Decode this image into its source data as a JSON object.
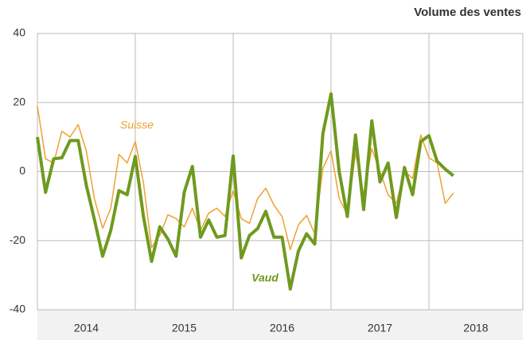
{
  "chart_data": {
    "type": "line",
    "title": "Volume des ventes",
    "categories": [
      null,
      null,
      null,
      null,
      null,
      null,
      null,
      null,
      null,
      null,
      null,
      null,
      null,
      null,
      null,
      null,
      null,
      null,
      null,
      null,
      null,
      null,
      null,
      null,
      null,
      null,
      null,
      null,
      null,
      null,
      null,
      null,
      null,
      null,
      null,
      null,
      null,
      null,
      null,
      null,
      null,
      null,
      null,
      null,
      null,
      null,
      null,
      null,
      null,
      null,
      null,
      null
    ],
    "year_groups": [
      2014,
      2015,
      2016,
      2017,
      2018
    ],
    "series": [
      {
        "name": "Suisse",
        "color": "#f0a030",
        "values": [
          19,
          3.7,
          2.5,
          11.7,
          10,
          13.6,
          6,
          -8,
          -16.4,
          -10.6,
          5,
          2.5,
          8.7,
          -3.2,
          -22,
          -18.5,
          -12.5,
          -13.6,
          -16,
          -10.6,
          -17,
          -12,
          -10.6,
          -13,
          -5.5,
          -13.6,
          -15,
          -7.8,
          -4.8,
          -9.7,
          -13,
          -22.6,
          -15.4,
          -12.7,
          -18,
          1,
          6,
          -7.8,
          -12.4,
          5.3,
          -6.7,
          6.7,
          0,
          -6.7,
          -9.2,
          0.2,
          -2,
          10.6,
          4,
          2.5,
          -9.2,
          -6.2
        ]
      },
      {
        "name": "Vaud",
        "color": "#6f9a1f",
        "values": [
          10,
          -6,
          3.7,
          4,
          9,
          9,
          -4,
          -14,
          -24.5,
          -17,
          -5.5,
          -6.7,
          4.4,
          -13,
          -26,
          -16,
          -19.5,
          -24.5,
          -6,
          1.5,
          -19,
          -14,
          -19,
          -18.5,
          4.5,
          -25,
          -18.5,
          -16.5,
          -11.5,
          -19,
          -19,
          -34,
          -23,
          -18,
          -21,
          11,
          22.5,
          0,
          -13,
          10.6,
          -11,
          14.7,
          -3,
          2.5,
          -13.3,
          1.2,
          -6.7,
          8.7,
          10.4,
          3,
          0.7,
          -1.2
        ]
      }
    ],
    "ylim": [
      -40,
      40
    ],
    "yticks": [
      -40,
      -20,
      0,
      20,
      40
    ],
    "grid": true
  }
}
